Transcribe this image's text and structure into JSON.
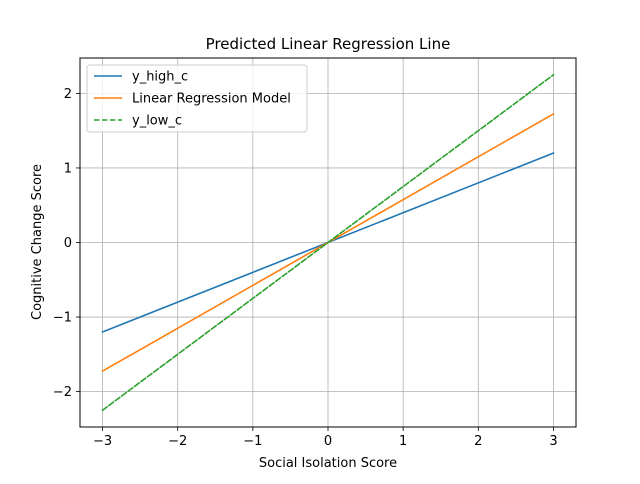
{
  "chart_data": {
    "type": "line",
    "title": "Predicted Linear Regression Line",
    "xlabel": "Social Isolation Score",
    "ylabel": "Cognitive Change Score",
    "xlim": [
      -3.3,
      3.3
    ],
    "ylim": [
      -2.475,
      2.475
    ],
    "xticks": [
      -3,
      -2,
      -1,
      0,
      1,
      2,
      3
    ],
    "yticks": [
      -2,
      -1,
      0,
      1,
      2
    ],
    "xtick_labels": [
      "−3",
      "−2",
      "−1",
      "0",
      "1",
      "2",
      "3"
    ],
    "ytick_labels": [
      "−2",
      "−1",
      "0",
      "1",
      "2"
    ],
    "grid": true,
    "legend_position": "upper-left",
    "series": [
      {
        "name": "y_high_c",
        "color": "#1f77b4",
        "dash": "solid",
        "x": [
          -3,
          3
        ],
        "y": [
          -1.2,
          1.2
        ]
      },
      {
        "name": "Linear Regression Model",
        "color": "#ff7f0e",
        "dash": "solid",
        "x": [
          -3,
          3
        ],
        "y": [
          -1.725,
          1.725
        ]
      },
      {
        "name": "y_low_c",
        "color": "#2ca02c",
        "dash": "dashed",
        "x": [
          -3,
          3
        ],
        "y": [
          -2.25,
          2.25
        ]
      }
    ]
  }
}
